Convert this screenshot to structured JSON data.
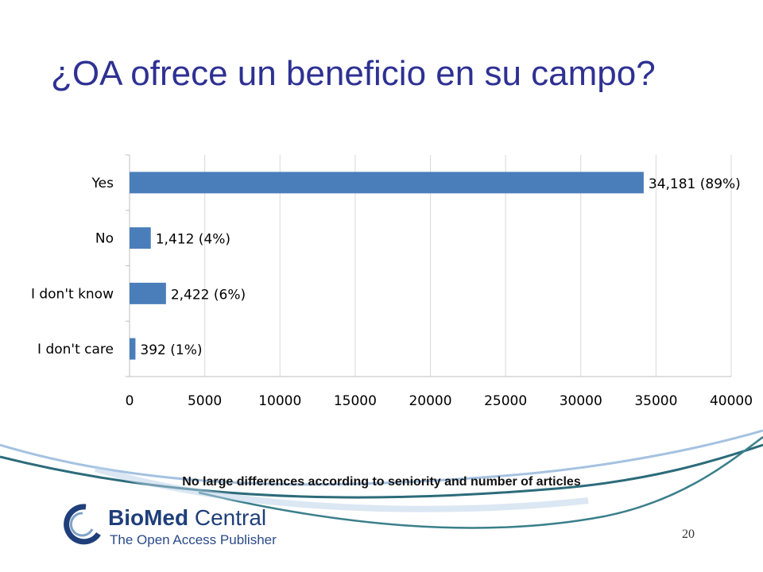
{
  "slide": {
    "title": "¿OA ofrece un beneficio en su campo?",
    "footnote": "No large differences according to seniority and number of articles",
    "page_number": "20"
  },
  "logo": {
    "name_bold": "BioMed",
    "name_regular": " Central",
    "tagline": "The Open Access Publisher"
  },
  "colors": {
    "title": "#2e3192",
    "bar": "#4a7ebb",
    "grid": "#d9d9d9",
    "swoosh_dark": "#2c6b7a",
    "swoosh_light": "#8fb3d9"
  },
  "chart_data": {
    "type": "bar",
    "orientation": "horizontal",
    "categories": [
      "Yes",
      "No",
      "I don't know",
      "I don't care"
    ],
    "values": [
      34181,
      1412,
      2422,
      392
    ],
    "value_labels": [
      "34,181",
      "1,412",
      "2,422",
      "392"
    ],
    "percent_labels": [
      "(89%)",
      "(4%)",
      "(6%)",
      "(1%)"
    ],
    "xlim": [
      0,
      40000
    ],
    "xticks": [
      0,
      5000,
      10000,
      15000,
      20000,
      25000,
      30000,
      35000,
      40000
    ],
    "grid": true,
    "legend": "none"
  }
}
